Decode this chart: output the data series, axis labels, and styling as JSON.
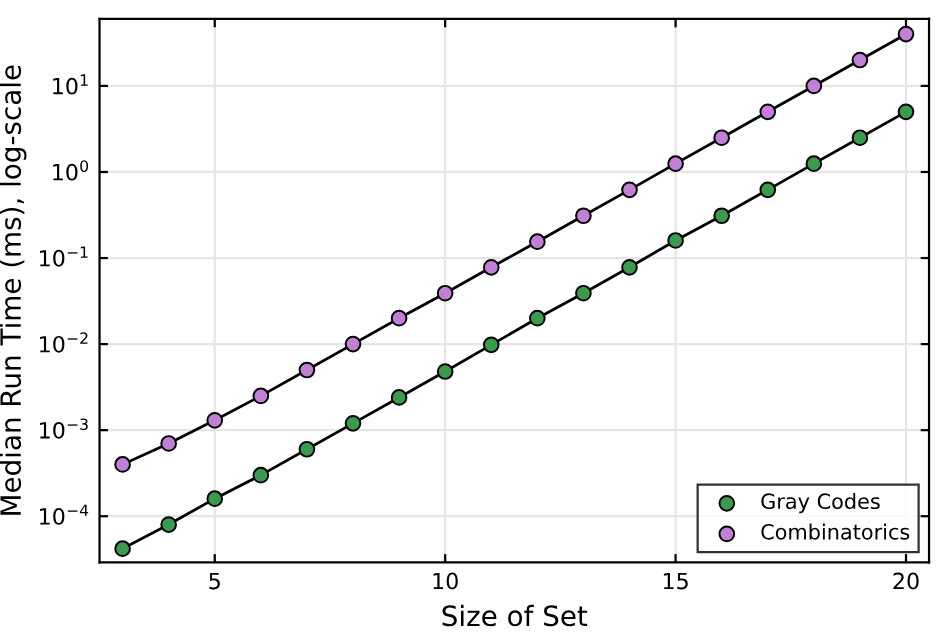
{
  "chart_data": {
    "type": "line",
    "xlabel": "Size of Set",
    "ylabel": "Median Run Time (ms), log-scale",
    "x": [
      3,
      4,
      5,
      6,
      7,
      8,
      9,
      10,
      11,
      12,
      13,
      14,
      15,
      16,
      17,
      18,
      19,
      20
    ],
    "series": [
      {
        "name": "Gray Codes",
        "color": "#3a9a4e",
        "values": [
          4.2e-05,
          8e-05,
          0.00016,
          0.0003,
          0.0006,
          0.0012,
          0.0024,
          0.0048,
          0.0098,
          0.02,
          0.039,
          0.078,
          0.16,
          0.31,
          0.62,
          1.25,
          2.5,
          5
        ]
      },
      {
        "name": "Combinatorics",
        "color": "#c27fd6",
        "values": [
          0.0004,
          0.0007,
          0.0013,
          0.0025,
          0.005,
          0.01,
          0.02,
          0.039,
          0.078,
          0.155,
          0.31,
          0.62,
          1.25,
          2.5,
          5,
          10,
          20,
          40
        ]
      }
    ],
    "log": true,
    "xlim": [
      2.5,
      20.5
    ],
    "xticks": [
      5,
      10,
      15,
      20
    ],
    "ylim": [
      2.9e-05,
      60
    ],
    "yticks": [
      {
        "value": 0.0001,
        "label": "10$^{−4}$"
      },
      {
        "value": 0.001,
        "label": "10$^{−3}$"
      },
      {
        "value": 0.01,
        "label": "10$^{−2}$"
      },
      {
        "value": 0.1,
        "label": "10$^{−1}$"
      },
      {
        "value": 1,
        "label": "10$^{0}$"
      },
      {
        "value": 10,
        "label": "10$^{1}$"
      }
    ],
    "grid": true,
    "legend": "bottom right",
    "marker": "circle",
    "line_style": "solid"
  }
}
